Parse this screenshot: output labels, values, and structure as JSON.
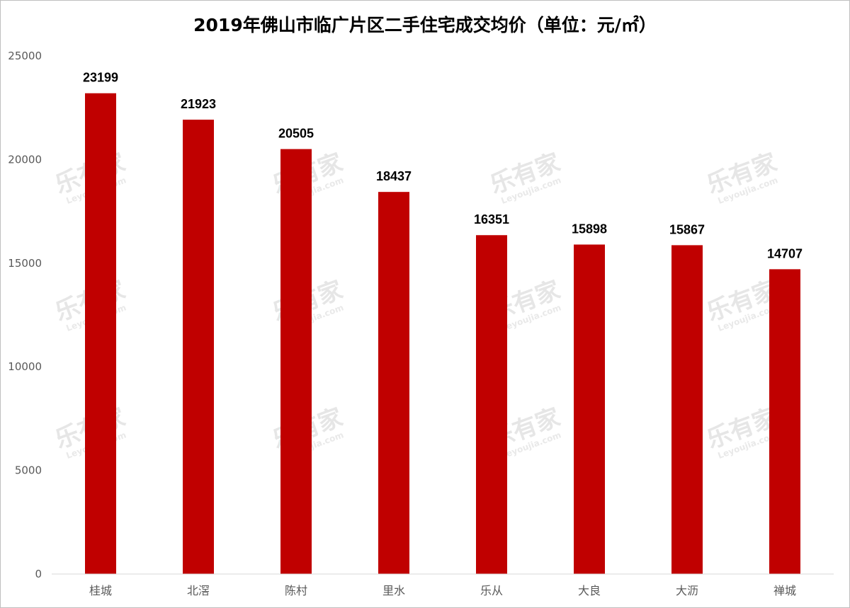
{
  "chart_data": {
    "type": "bar",
    "title": "2019年佛山市临广片区二手住宅成交均价（单位：元/㎡）",
    "categories": [
      "桂城",
      "北滘",
      "陈村",
      "里水",
      "乐从",
      "大良",
      "大沥",
      "禅城"
    ],
    "values": [
      23199,
      21923,
      20505,
      18437,
      16351,
      15898,
      15867,
      14707
    ],
    "ylim": [
      0,
      25000
    ],
    "yticks": [
      0,
      5000,
      10000,
      15000,
      20000,
      25000
    ],
    "xlabel": "",
    "ylabel": "",
    "grid": false,
    "legend": "none",
    "bar_color": "#c00000"
  },
  "watermark": {
    "text": "乐有家",
    "subtext": "Leyoujia.com"
  }
}
